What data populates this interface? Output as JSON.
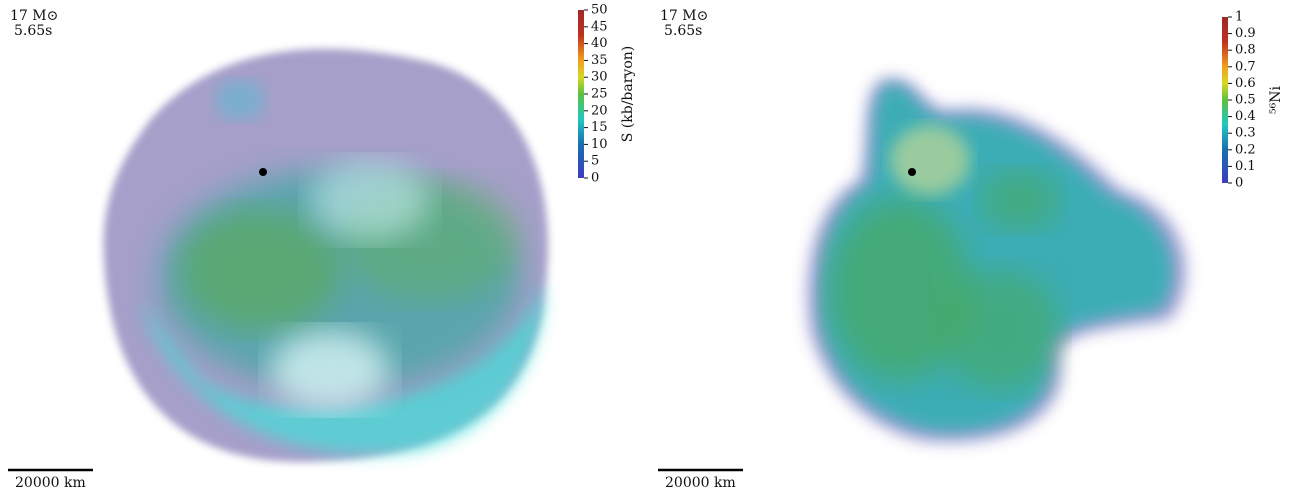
{
  "panels": [
    {
      "mass": "17 M⊙",
      "time": "5.65s",
      "colorbar": {
        "label": "S (kb/baryon)",
        "lim": [
          0,
          50
        ],
        "ticks": [
          0,
          5,
          10,
          15,
          20,
          25,
          30,
          35,
          40,
          45,
          50
        ]
      },
      "scale_bar": "20000 km"
    },
    {
      "mass": "17 M⊙",
      "time": "5.65s",
      "colorbar": {
        "label": "⁵⁶Ni",
        "lim": [
          0,
          1
        ],
        "ticks": [
          0,
          0.1,
          0.2,
          0.3,
          0.4,
          0.5,
          0.6,
          0.7,
          0.8,
          0.9,
          1
        ]
      },
      "scale_bar": "20000 km"
    }
  ]
}
